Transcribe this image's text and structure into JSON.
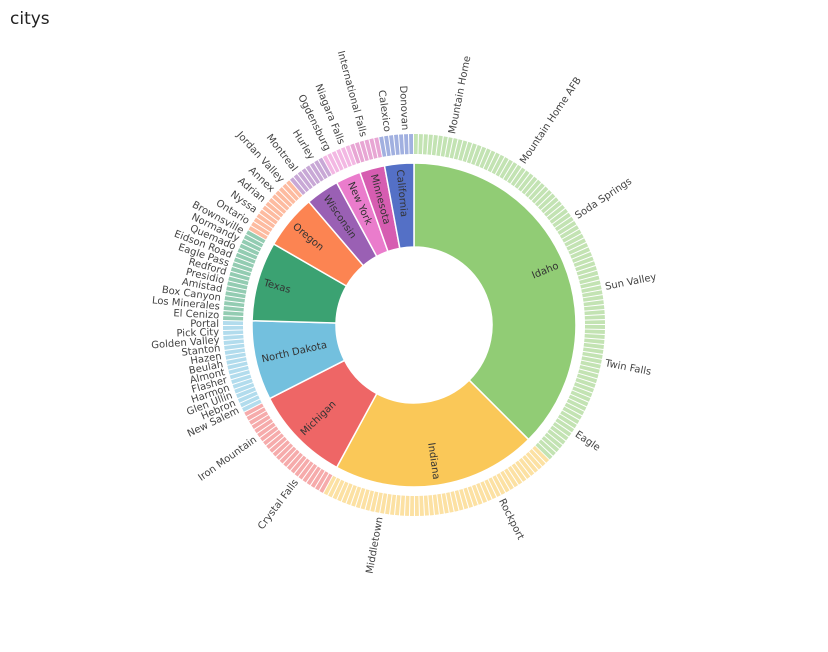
{
  "chart_data": {
    "type": "sunburst",
    "title": "citys",
    "series": [
      {
        "name": "Idaho",
        "color": "#91cc75",
        "value": 90,
        "cities": [
          "Mountain Home",
          "Mountain Home AFB",
          "Soda Springs",
          "Sun Valley",
          "Twin Falls",
          "Eagle"
        ]
      },
      {
        "name": "Indiana",
        "color": "#fac858",
        "value": 49,
        "cities": [
          "Rockport",
          "Middletown"
        ]
      },
      {
        "name": "Michigan",
        "color": "#ee6666",
        "value": 23,
        "cities": [
          "Crystal Falls",
          "Iron Mountain"
        ]
      },
      {
        "name": "North Dakota",
        "color": "#73c0de",
        "value": 19,
        "cities": [
          "New Salem",
          "Hebron",
          "Glen Ullin",
          "Harmon",
          "Flasher",
          "Almont",
          "Beulah",
          "Hazen",
          "Stanton",
          "Golden Valley",
          "Pick City",
          "Portal"
        ]
      },
      {
        "name": "Texas",
        "color": "#3ba272",
        "value": 19,
        "cities": [
          "El Cenizo",
          "Los Minerales",
          "Box Canyon",
          "Amistad",
          "Presidio",
          "Redford",
          "Eagle Pass",
          "Eidson Road",
          "Quemado",
          "Normandy",
          "Brownsville"
        ]
      },
      {
        "name": "Oregon",
        "color": "#fc8452",
        "value": 13,
        "cities": [
          "Ontario",
          "Nyssa",
          "Adrian",
          "Annex",
          "Jordan Valley"
        ]
      },
      {
        "name": "Wisconsin",
        "color": "#9a60b4",
        "value": 8,
        "cities": [
          "Montreal",
          "Hurley"
        ]
      },
      {
        "name": "New York",
        "color": "#ea7ccc",
        "value": 6,
        "cities": [
          "Ogdensburg",
          "Niagara Falls"
        ]
      },
      {
        "name": "Minnesota",
        "color": "#d65db1",
        "value": 6,
        "cities": [
          "International Falls"
        ]
      },
      {
        "name": "California",
        "color": "#5470c6",
        "value": 7,
        "cities": [
          "Calexico",
          "Donovan"
        ]
      }
    ]
  }
}
